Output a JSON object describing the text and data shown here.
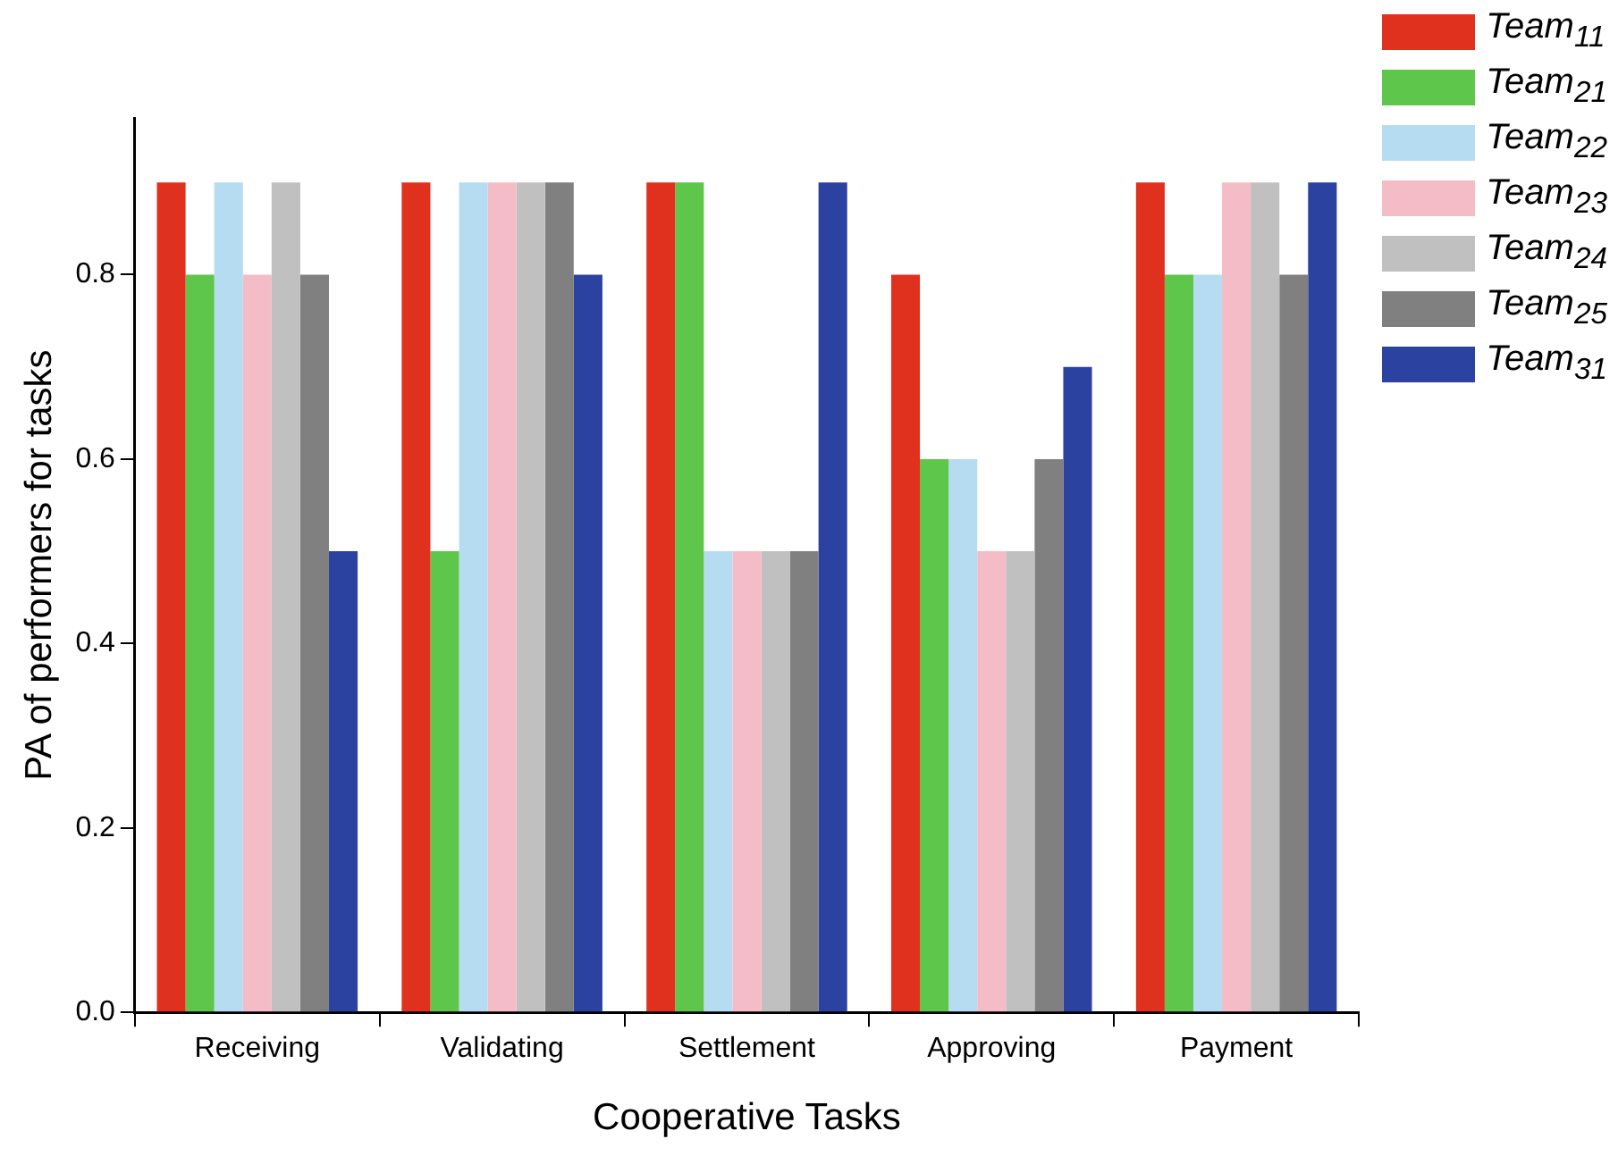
{
  "chart_data": {
    "type": "bar",
    "xlabel": "Cooperative Tasks",
    "ylabel": "PA of performers for tasks",
    "categories": [
      "Receiving",
      "Validating",
      "Settlement",
      "Approving",
      "Payment"
    ],
    "series": [
      {
        "name": "Team$_{11}$",
        "color": "#e0301e",
        "values": [
          0.9,
          0.9,
          0.9,
          0.8,
          0.9
        ]
      },
      {
        "name": "Team$_{21}$",
        "color": "#5ec64a",
        "values": [
          0.8,
          0.5,
          0.9,
          0.6,
          0.8
        ]
      },
      {
        "name": "Team$_{22}$",
        "color": "#b5dcf0",
        "values": [
          0.9,
          0.9,
          0.5,
          0.6,
          0.8
        ]
      },
      {
        "name": "Team$_{23}$",
        "color": "#f4bcc6",
        "values": [
          0.8,
          0.9,
          0.5,
          0.5,
          0.9
        ]
      },
      {
        "name": "Team$_{24}$",
        "color": "#c0c0c0",
        "values": [
          0.9,
          0.9,
          0.5,
          0.5,
          0.9
        ]
      },
      {
        "name": "Team$_{25}$",
        "color": "#808080",
        "values": [
          0.8,
          0.9,
          0.5,
          0.6,
          0.8
        ]
      },
      {
        "name": "Team$_{31}$",
        "color": "#2b42a0",
        "values": [
          0.5,
          0.8,
          0.9,
          0.7,
          0.9
        ]
      }
    ],
    "ylim": [
      0,
      0.97
    ],
    "yticks": [
      {
        "value": 0,
        "label": "0.0"
      },
      {
        "value": 0.2,
        "label": "0.2"
      },
      {
        "value": 0.4,
        "label": "0.4"
      },
      {
        "value": 0.6,
        "label": "0.6"
      },
      {
        "value": 0.8,
        "label": "0.8"
      }
    ],
    "grid": false,
    "legend": "top right"
  }
}
